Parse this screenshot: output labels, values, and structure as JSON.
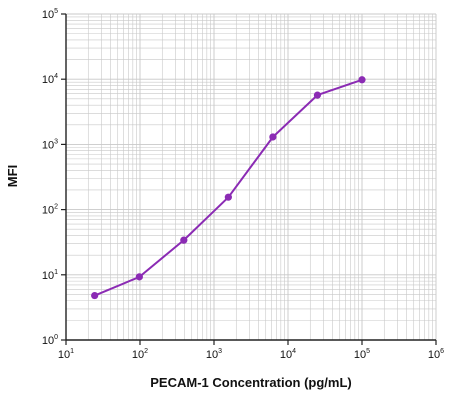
{
  "chart_data": {
    "type": "line",
    "title": "",
    "xlabel": "PECAM-1 Concentration (pg/mL)",
    "ylabel": "MFI",
    "x_scale": "log",
    "y_scale": "log",
    "xlim": [
      10,
      1000000
    ],
    "ylim": [
      1,
      100000
    ],
    "x_tick_labels": [
      {
        "base": "10",
        "exp": "1"
      },
      {
        "base": "10",
        "exp": "2"
      },
      {
        "base": "10",
        "exp": "3"
      },
      {
        "base": "10",
        "exp": "4"
      },
      {
        "base": "10",
        "exp": "5"
      },
      {
        "base": "10",
        "exp": "6"
      }
    ],
    "y_tick_labels": [
      {
        "base": "10",
        "exp": "0"
      },
      {
        "base": "10",
        "exp": "1"
      },
      {
        "base": "10",
        "exp": "2"
      },
      {
        "base": "10",
        "exp": "3"
      },
      {
        "base": "10",
        "exp": "4"
      },
      {
        "base": "10",
        "exp": "5"
      }
    ],
    "grid": true,
    "series": [
      {
        "x": [
          24.4,
          98,
          391,
          1563,
          6250,
          25000,
          100000
        ],
        "y": [
          4.8,
          9.3,
          34,
          155,
          1300,
          5700,
          9800
        ]
      }
    ],
    "colors": {
      "series": "#8B2BB4",
      "grid": "#c8c8c8",
      "axis": "#222222"
    }
  }
}
